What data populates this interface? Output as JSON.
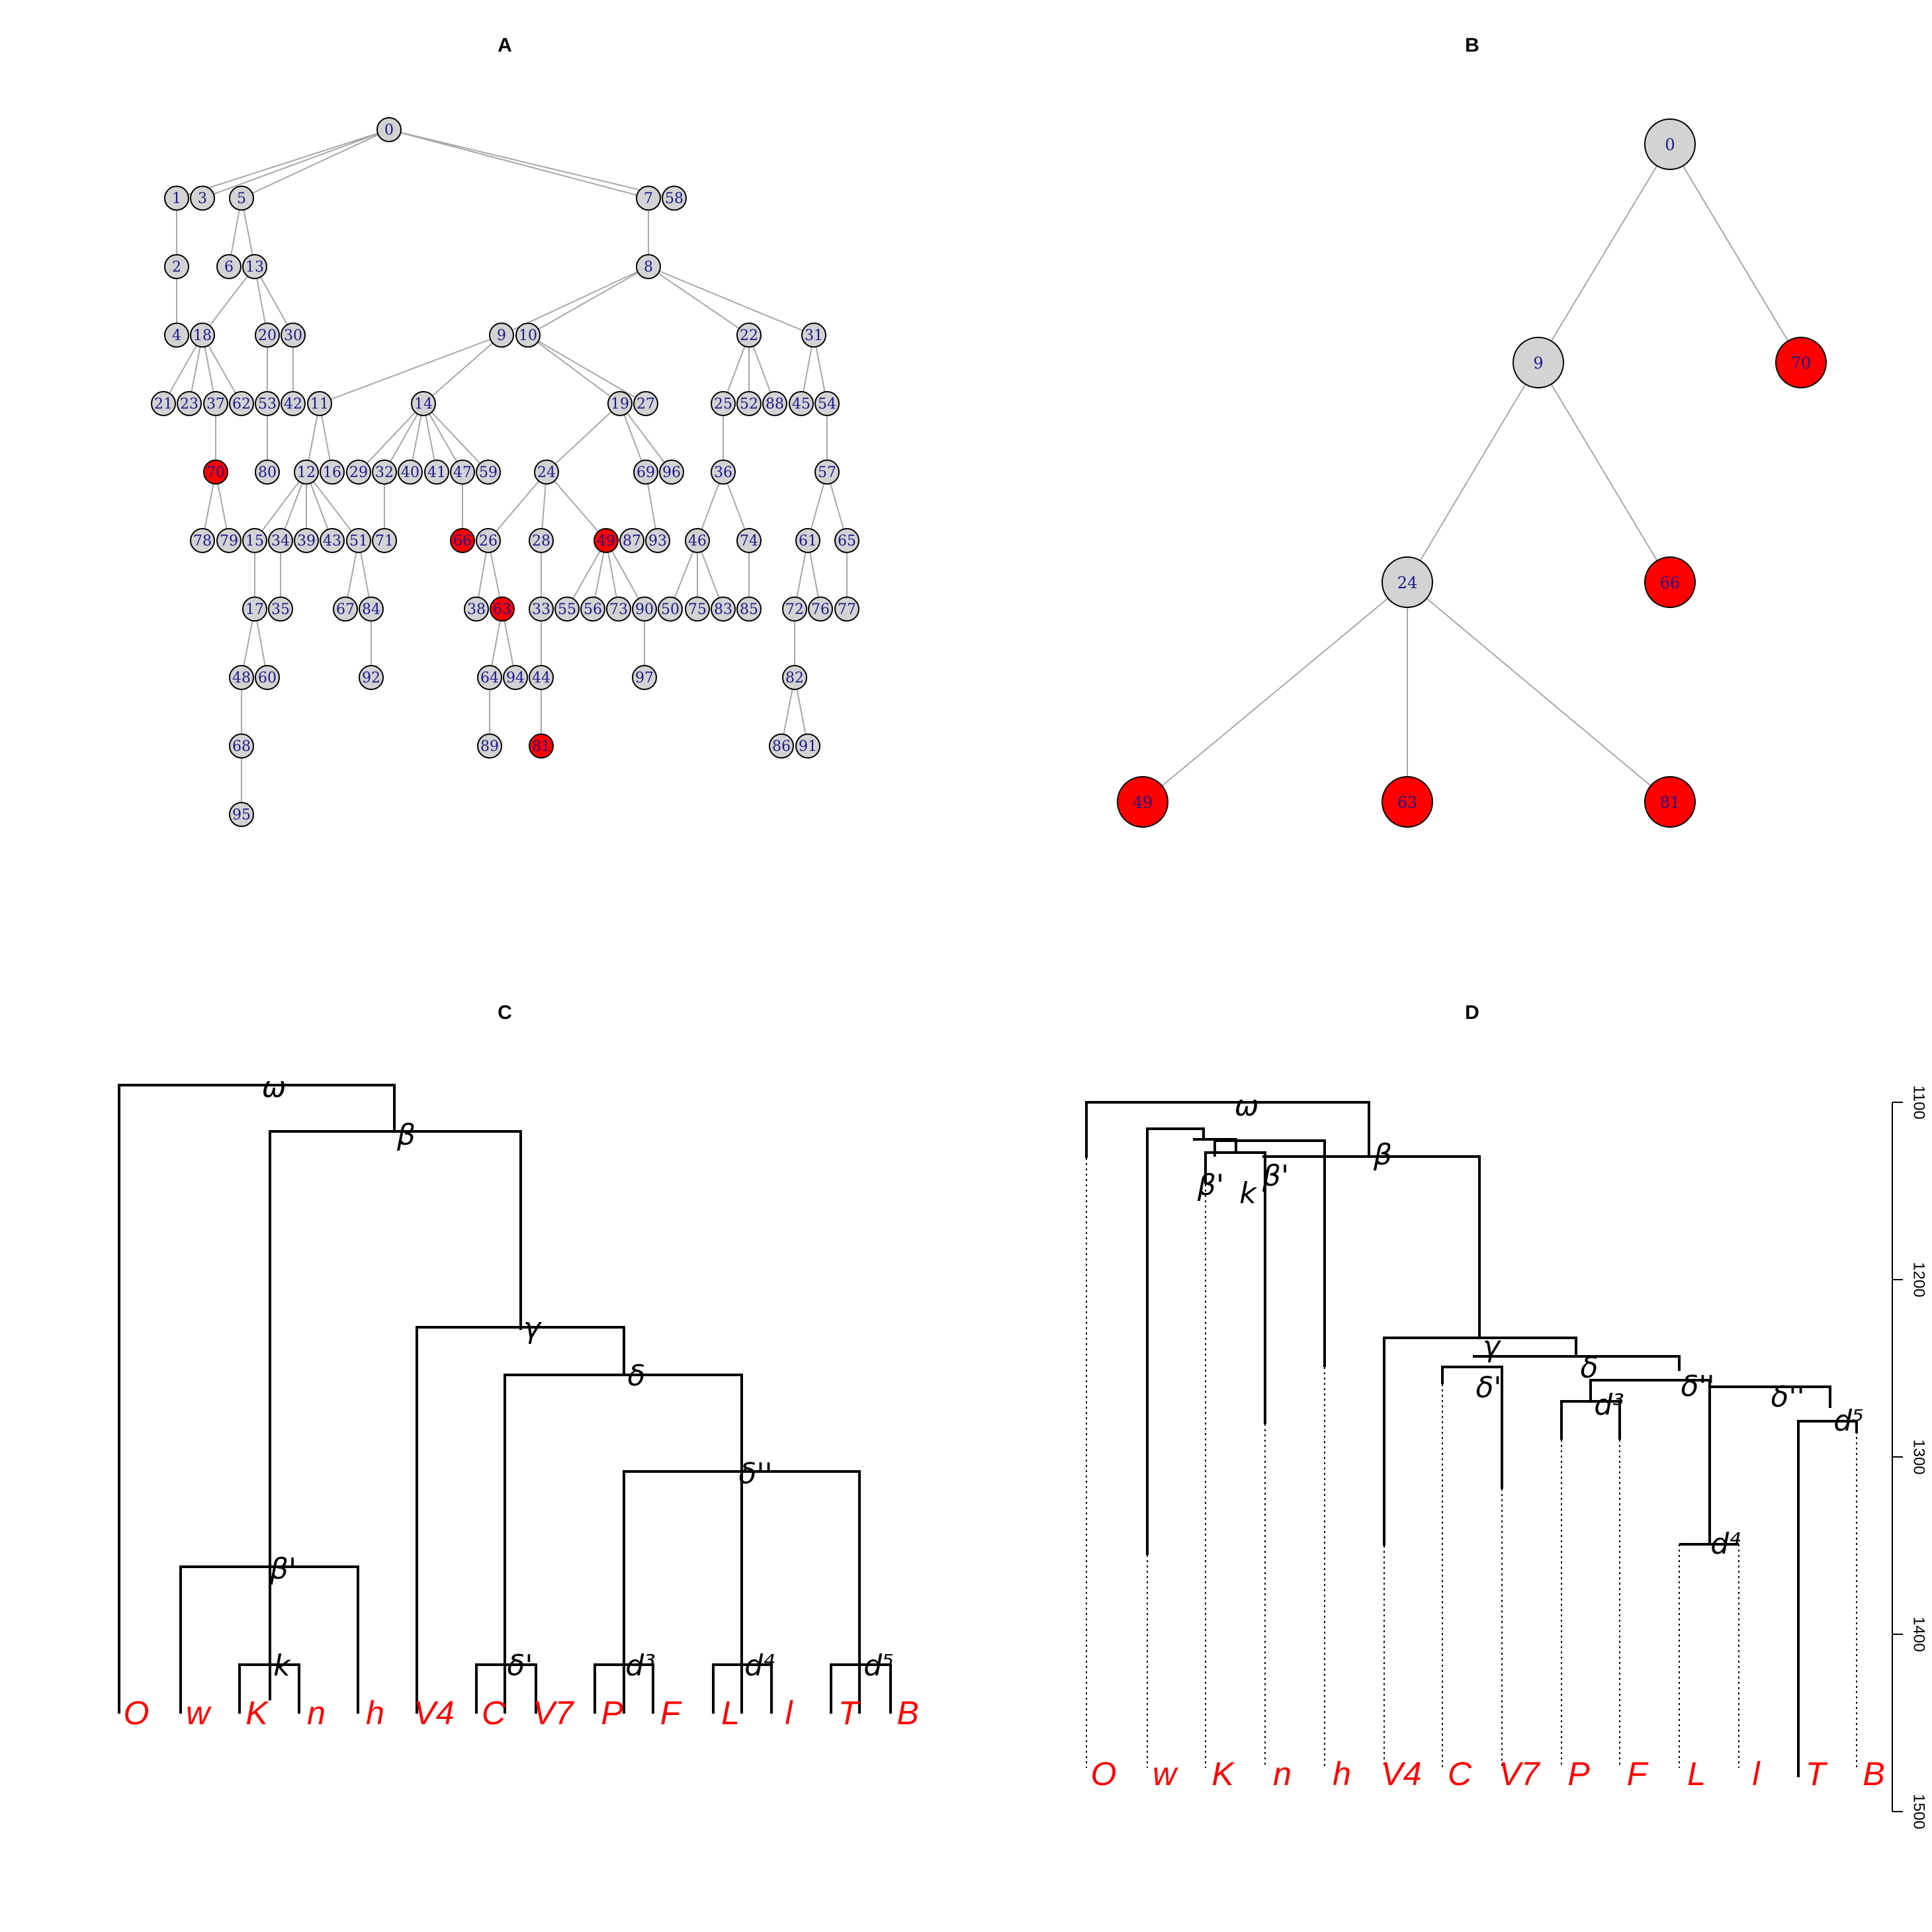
{
  "colors": {
    "node_default": "#d3d3d3",
    "node_highlight": "#ff0000",
    "node_label": "#1a1a8c",
    "edge": "#a8a8a8",
    "leaf_label": "#ff0000"
  },
  "panels": {
    "A": {
      "title": "A",
      "tree_edges": [
        [
          0,
          1
        ],
        [
          0,
          3
        ],
        [
          0,
          5
        ],
        [
          0,
          7
        ],
        [
          0,
          58
        ],
        [
          1,
          2
        ],
        [
          5,
          6
        ],
        [
          5,
          13
        ],
        [
          7,
          8
        ],
        [
          2,
          4
        ],
        [
          13,
          18
        ],
        [
          13,
          20
        ],
        [
          13,
          30
        ],
        [
          8,
          9
        ],
        [
          8,
          10
        ],
        [
          8,
          22
        ],
        [
          8,
          31
        ],
        [
          18,
          21
        ],
        [
          18,
          23
        ],
        [
          18,
          37
        ],
        [
          18,
          62
        ],
        [
          20,
          53
        ],
        [
          30,
          42
        ],
        [
          9,
          11
        ],
        [
          9,
          14
        ],
        [
          10,
          19
        ],
        [
          10,
          27
        ],
        [
          22,
          25
        ],
        [
          22,
          52
        ],
        [
          22,
          88
        ],
        [
          31,
          45
        ],
        [
          31,
          54
        ],
        [
          37,
          70
        ],
        [
          53,
          80
        ],
        [
          11,
          12
        ],
        [
          11,
          16
        ],
        [
          14,
          29
        ],
        [
          14,
          32
        ],
        [
          14,
          40
        ],
        [
          14,
          41
        ],
        [
          14,
          47
        ],
        [
          14,
          59
        ],
        [
          19,
          24
        ],
        [
          19,
          69
        ],
        [
          19,
          96
        ],
        [
          25,
          36
        ],
        [
          54,
          57
        ],
        [
          70,
          78
        ],
        [
          70,
          79
        ],
        [
          12,
          15
        ],
        [
          12,
          34
        ],
        [
          12,
          39
        ],
        [
          12,
          43
        ],
        [
          12,
          51
        ],
        [
          32,
          71
        ],
        [
          47,
          66
        ],
        [
          24,
          26
        ],
        [
          24,
          28
        ],
        [
          24,
          49
        ],
        [
          49,
          87
        ],
        [
          69,
          93
        ],
        [
          36,
          46
        ],
        [
          36,
          74
        ],
        [
          57,
          61
        ],
        [
          57,
          65
        ],
        [
          15,
          17
        ],
        [
          34,
          35
        ],
        [
          51,
          67
        ],
        [
          51,
          84
        ],
        [
          26,
          38
        ],
        [
          26,
          63
        ],
        [
          28,
          33
        ],
        [
          49,
          55
        ],
        [
          49,
          56
        ],
        [
          49,
          73
        ],
        [
          49,
          90
        ],
        [
          46,
          50
        ],
        [
          46,
          75
        ],
        [
          46,
          83
        ],
        [
          74,
          85
        ],
        [
          61,
          72
        ],
        [
          61,
          76
        ],
        [
          65,
          77
        ],
        [
          17,
          48
        ],
        [
          17,
          60
        ],
        [
          84,
          92
        ],
        [
          63,
          64
        ],
        [
          63,
          94
        ],
        [
          33,
          44
        ],
        [
          90,
          97
        ],
        [
          72,
          82
        ],
        [
          48,
          68
        ],
        [
          64,
          89
        ],
        [
          44,
          81
        ],
        [
          82,
          86
        ],
        [
          82,
          91
        ],
        [
          68,
          95
        ]
      ],
      "tree_levels": [
        [
          0
        ],
        [
          1,
          3,
          5,
          7,
          58
        ],
        [
          2,
          6,
          13,
          8
        ],
        [
          4,
          18,
          20,
          30,
          9,
          10,
          22,
          31
        ],
        [
          21,
          23,
          37,
          62,
          53,
          42,
          11,
          14,
          19,
          27,
          25,
          52,
          88,
          45,
          54
        ],
        [
          70,
          80,
          12,
          16,
          29,
          32,
          40,
          41,
          47,
          59,
          24,
          69,
          96,
          36,
          57
        ],
        [
          78,
          79,
          15,
          34,
          39,
          43,
          51,
          71,
          66,
          26,
          28,
          49,
          87,
          93,
          46,
          74,
          61,
          65
        ],
        [
          17,
          35,
          67,
          84,
          38,
          63,
          33,
          55,
          56,
          73,
          90,
          50,
          75,
          83,
          85,
          72,
          76,
          77
        ],
        [
          48,
          60,
          92,
          64,
          94,
          44,
          97,
          82
        ],
        [
          68,
          89,
          81,
          86,
          91
        ],
        [
          95
        ]
      ],
      "highlighted_nodes": [
        70,
        66,
        49,
        63,
        81
      ]
    },
    "B": {
      "title": "B",
      "nodes": [
        {
          "label": "0",
          "highlight": false
        },
        {
          "label": "9",
          "highlight": false
        },
        {
          "label": "70",
          "highlight": true
        },
        {
          "label": "24",
          "highlight": false
        },
        {
          "label": "66",
          "highlight": true
        },
        {
          "label": "49",
          "highlight": true
        },
        {
          "label": "63",
          "highlight": true
        },
        {
          "label": "81",
          "highlight": true
        }
      ],
      "edges": [
        [
          "0",
          "9"
        ],
        [
          "0",
          "70"
        ],
        [
          "9",
          "24"
        ],
        [
          "9",
          "66"
        ],
        [
          "24",
          "49"
        ],
        [
          "24",
          "63"
        ],
        [
          "24",
          "81"
        ]
      ]
    },
    "C": {
      "title": "C",
      "leaves": [
        "O",
        "w",
        "K",
        "n",
        "h",
        "V4",
        "C",
        "V7",
        "P",
        "F",
        "L",
        "l",
        "T",
        "B"
      ],
      "internal_labels": [
        "ω",
        "β",
        "γ",
        "δ",
        "δ''",
        "β'",
        "k",
        "δ'",
        "d³",
        "d⁴",
        "d⁵"
      ]
    },
    "D": {
      "title": "D",
      "leaves": [
        "O",
        "w",
        "K",
        "n",
        "h",
        "V4",
        "C",
        "V7",
        "P",
        "F",
        "L",
        "l",
        "T",
        "B"
      ],
      "internal_labels": [
        "ω",
        "β",
        "β'",
        "β'",
        "k",
        "γ",
        "δ",
        "δ'",
        "δ''",
        "δ''",
        "d³",
        "d⁴",
        "d⁵"
      ],
      "axis": {
        "ticks": [
          "1100",
          "1200",
          "1300",
          "1400",
          "1500"
        ],
        "min": 1100,
        "max": 1500
      }
    }
  }
}
